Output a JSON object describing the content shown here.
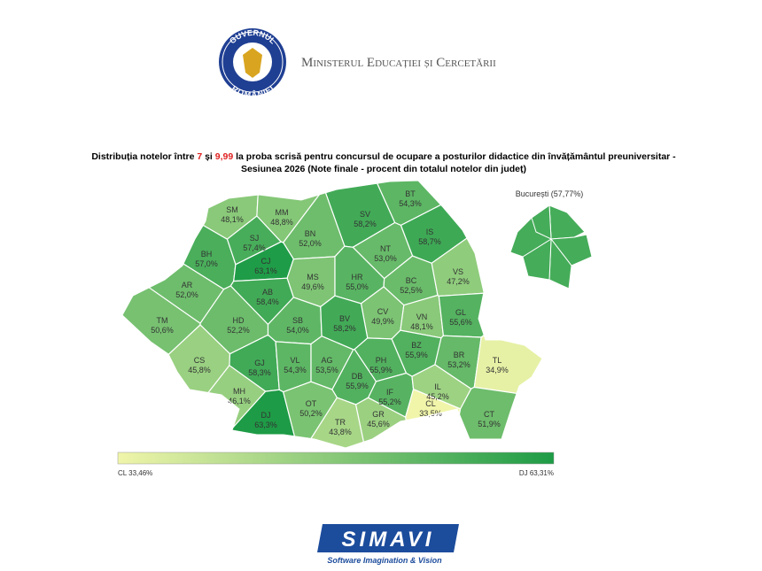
{
  "header": {
    "emblem_top": "GUVERNUL",
    "emblem_bottom": "ROMÂNIEI",
    "ministry": "Ministerul Educației și Cercetării"
  },
  "title": {
    "line1": [
      {
        "text": "Distribuția notelor între "
      },
      {
        "text": "7",
        "color": "#e02020"
      },
      {
        "text": " și "
      },
      {
        "text": "9,99",
        "color": "#e02020"
      },
      {
        "text": " la proba scrisă pentru concursul de ocupare a posturilor didactice din învățământul preuniversitar -"
      }
    ],
    "line2": "Sesiunea 2026 (Note finale - procent din totalul notelor din județ)"
  },
  "counties": [
    {
      "code": "SM",
      "value": 48.1,
      "value_label": "48,1%"
    },
    {
      "code": "MM",
      "value": 48.8,
      "value_label": "48,8%"
    },
    {
      "code": "BT",
      "value": 54.3,
      "value_label": "54,3%"
    },
    {
      "code": "SV",
      "value": 58.2,
      "value_label": "58,2%"
    },
    {
      "code": "IS",
      "value": 58.7,
      "value_label": "58,7%"
    },
    {
      "code": "BN",
      "value": 52.0,
      "value_label": "52,0%"
    },
    {
      "code": "SJ",
      "value": 57.4,
      "value_label": "57,4%"
    },
    {
      "code": "BH",
      "value": 57.0,
      "value_label": "57,0%"
    },
    {
      "code": "CJ",
      "value": 63.1,
      "value_label": "63,1%"
    },
    {
      "code": "NT",
      "value": 53.0,
      "value_label": "53,0%"
    },
    {
      "code": "MS",
      "value": 49.6,
      "value_label": "49,6%"
    },
    {
      "code": "HR",
      "value": 55.0,
      "value_label": "55,0%"
    },
    {
      "code": "BC",
      "value": 52.5,
      "value_label": "52,5%"
    },
    {
      "code": "VS",
      "value": 47.2,
      "value_label": "47,2%"
    },
    {
      "code": "AR",
      "value": 52.0,
      "value_label": "52,0%"
    },
    {
      "code": "AB",
      "value": 58.4,
      "value_label": "58,4%"
    },
    {
      "code": "CV",
      "value": 49.9,
      "value_label": "49,9%"
    },
    {
      "code": "VN",
      "value": 48.1,
      "value_label": "48,1%"
    },
    {
      "code": "GL",
      "value": 55.6,
      "value_label": "55,6%"
    },
    {
      "code": "TM",
      "value": 50.6,
      "value_label": "50,6%"
    },
    {
      "code": "HD",
      "value": 52.2,
      "value_label": "52,2%"
    },
    {
      "code": "SB",
      "value": 54.0,
      "value_label": "54,0%"
    },
    {
      "code": "BV",
      "value": 58.2,
      "value_label": "58,2%"
    },
    {
      "code": "CS",
      "value": 45.8,
      "value_label": "45,8%"
    },
    {
      "code": "GJ",
      "value": 58.3,
      "value_label": "58,3%"
    },
    {
      "code": "VL",
      "value": 54.3,
      "value_label": "54,3%"
    },
    {
      "code": "AG",
      "value": 53.5,
      "value_label": "53,5%"
    },
    {
      "code": "DB",
      "value": 55.9,
      "value_label": "55,9%"
    },
    {
      "code": "PH",
      "value": 55.9,
      "value_label": "55,9%"
    },
    {
      "code": "BZ",
      "value": 55.9,
      "value_label": "55,9%"
    },
    {
      "code": "BR",
      "value": 53.2,
      "value_label": "53,2%"
    },
    {
      "code": "TL",
      "value": 34.9,
      "value_label": "34,9%"
    },
    {
      "code": "MH",
      "value": 46.1,
      "value_label": "46,1%"
    },
    {
      "code": "DJ",
      "value": 63.3,
      "value_label": "63,3%"
    },
    {
      "code": "OT",
      "value": 50.2,
      "value_label": "50,2%"
    },
    {
      "code": "TR",
      "value": 43.8,
      "value_label": "43,8%"
    },
    {
      "code": "GR",
      "value": 45.6,
      "value_label": "45,6%"
    },
    {
      "code": "IF",
      "value": 55.2,
      "value_label": "55,2%"
    },
    {
      "code": "IL",
      "value": 45.2,
      "value_label": "45,2%"
    },
    {
      "code": "CL",
      "value": 33.5,
      "value_label": "33,5%"
    },
    {
      "code": "CT",
      "value": 51.9,
      "value_label": "51,9%"
    }
  ],
  "bucharest": {
    "label": "București (57,77%)",
    "value": 57.77
  },
  "legend": {
    "min": 33.46,
    "max": 63.31,
    "min_label": "CL 33,46%",
    "max_label": "DJ 63,31%"
  },
  "footer": {
    "logo": "SIMAVI",
    "tagline": "Software Imagination & Vision"
  }
}
